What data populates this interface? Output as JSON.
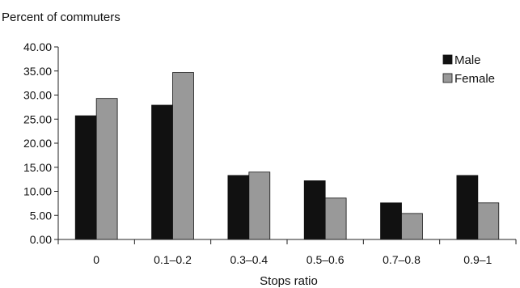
{
  "chart_data": {
    "type": "bar",
    "ylabel": "Percent of commuters",
    "xlabel": "Stops ratio",
    "categories": [
      "0",
      "0.1–0.2",
      "0.3–0.4",
      "0.5–0.6",
      "0.7–0.8",
      "0.9–1"
    ],
    "series": [
      {
        "name": "Male",
        "color": "#111111",
        "values": [
          25.7,
          27.9,
          13.3,
          12.2,
          7.6,
          13.3
        ]
      },
      {
        "name": "Female",
        "color": "#999999",
        "values": [
          29.3,
          34.7,
          14.0,
          8.6,
          5.4,
          7.6
        ]
      }
    ],
    "ylim": [
      0,
      40
    ],
    "yticks": [
      "0.00",
      "5.00",
      "10.00",
      "15.00",
      "20.00",
      "25.00",
      "30.00",
      "35.00",
      "40.00"
    ],
    "legend_position": "top-right",
    "grid": false
  }
}
